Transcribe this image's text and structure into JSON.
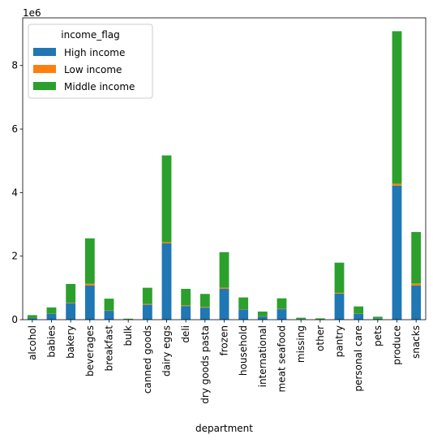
{
  "chart_data": {
    "type": "bar",
    "stacked": true,
    "xlabel": "department",
    "ylabel": "",
    "offset_text": "1e6",
    "ylim": [
      0,
      9.5
    ],
    "yticks": [
      0,
      2,
      4,
      6,
      8
    ],
    "y_scale_note": "values in units of 1e6",
    "legend": {
      "title": "income_flag",
      "position": "top-left"
    },
    "categories": [
      "alcohol",
      "babies",
      "bakery",
      "beverages",
      "breakfast",
      "bulk",
      "canned goods",
      "dairy eggs",
      "deli",
      "dry goods pasta",
      "frozen",
      "household",
      "international",
      "meat seafood",
      "missing",
      "other",
      "pantry",
      "personal care",
      "pets",
      "produce",
      "snacks"
    ],
    "series": [
      {
        "name": "High income",
        "color": "#1f77b4",
        "values": [
          0.05,
          0.18,
          0.52,
          1.08,
          0.28,
          0.01,
          0.47,
          2.4,
          0.43,
          0.38,
          0.97,
          0.32,
          0.1,
          0.33,
          0.02,
          0.01,
          0.82,
          0.18,
          0.03,
          4.22,
          1.08
        ]
      },
      {
        "name": "Low income",
        "color": "#ff7f0e",
        "values": [
          0.003,
          0.005,
          0.015,
          0.05,
          0.012,
          0.001,
          0.025,
          0.04,
          0.02,
          0.02,
          0.035,
          0.01,
          0.005,
          0.012,
          0.001,
          0.001,
          0.025,
          0.007,
          0.002,
          0.06,
          0.06
        ]
      },
      {
        "name": "Middle income",
        "color": "#2ca02c",
        "values": [
          0.09,
          0.2,
          0.59,
          1.43,
          0.37,
          0.02,
          0.51,
          2.73,
          0.52,
          0.41,
          1.12,
          0.37,
          0.15,
          0.33,
          0.04,
          0.03,
          0.95,
          0.23,
          0.06,
          4.8,
          1.62
        ]
      }
    ]
  }
}
